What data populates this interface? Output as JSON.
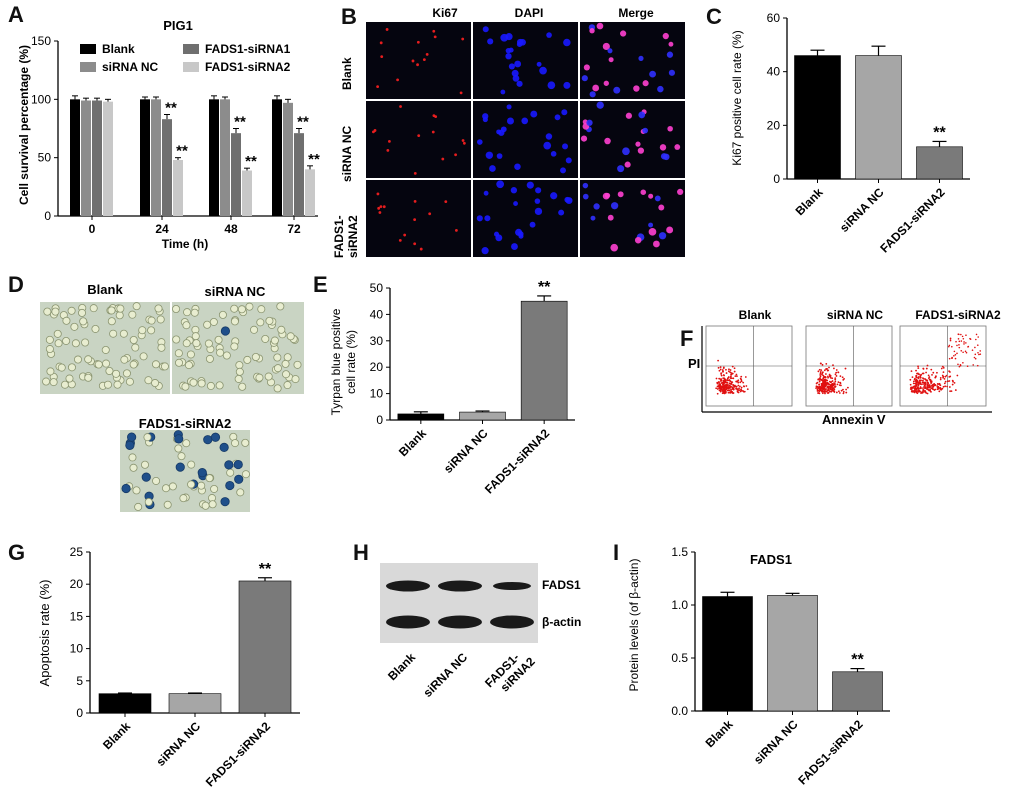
{
  "panel_labels": {
    "A": "A",
    "B": "B",
    "C": "C",
    "D": "D",
    "E": "E",
    "F": "F",
    "G": "G",
    "H": "H",
    "I": "I"
  },
  "colors": {
    "blank": "#000000",
    "sirna_nc": "#8c8c8c",
    "fads1_sirna1": "#6f6f6f",
    "fads1_sirna2": "#c8c8c8",
    "bar_single_blank": "#000000",
    "bar_single_nc": "#a6a6a6",
    "bar_single_si2": "#7a7a7a"
  },
  "panelA": {
    "title": "PIG1",
    "ylabel": "Cell survival percentage (%)",
    "xlabel": "Time (h)",
    "legend": [
      "Blank",
      "siRNA NC",
      "FADS1-siRNA1",
      "FADS1-siRNA2"
    ],
    "sig": "**"
  },
  "panelB": {
    "cols": [
      "Ki67",
      "DAPI",
      "Merge"
    ],
    "rows": [
      "Blank",
      "siRNA NC",
      "FADS1-\nsiRNA2"
    ]
  },
  "panelC": {
    "ylabel": "Ki67 positive cell rate (%)",
    "sig": "**"
  },
  "panelD": {
    "labels": [
      "Blank",
      "siRNA NC",
      "FADS1-siRNA2"
    ]
  },
  "panelE": {
    "ylabel1": "Tyrpan blue positive",
    "ylabel2": "cell rate (%)",
    "sig": "**"
  },
  "panelF": {
    "labels": [
      "Blank",
      "siRNA NC",
      "FADS1-siRNA2"
    ],
    "yaxis": "PI",
    "xaxis": "Annexin V"
  },
  "panelG": {
    "ylabel": "Apoptosis rate (%)",
    "sig": "**"
  },
  "panelH": {
    "bands": [
      "FADS1",
      "β-actin"
    ],
    "lanes": [
      "Blank",
      "siRNA NC",
      "FADS1-siRNA2"
    ]
  },
  "panelI": {
    "title": "FADS1",
    "ylabel": "Protein levels (of β-actin)",
    "sig": "**"
  },
  "chart_data": [
    {
      "id": "A",
      "type": "bar",
      "title": "PIG1",
      "categories": [
        "0",
        "24",
        "48",
        "72"
      ],
      "xlabel": "Time (h)",
      "ylabel": "Cell survival percentage (%)",
      "ylim": [
        0,
        150
      ],
      "yticks": [
        0,
        50,
        100,
        150
      ],
      "series": [
        {
          "name": "Blank",
          "values": [
            100,
            100,
            100,
            100
          ],
          "errors": [
            3,
            2,
            3,
            3
          ]
        },
        {
          "name": "siRNA NC",
          "values": [
            99,
            100,
            100,
            97
          ],
          "errors": [
            2,
            2,
            2,
            3
          ]
        },
        {
          "name": "FADS1-siRNA1",
          "values": [
            99,
            83,
            71,
            71
          ],
          "errors": [
            2,
            4,
            4,
            4
          ]
        },
        {
          "name": "FADS1-siRNA2",
          "values": [
            98,
            48,
            39,
            40
          ],
          "errors": [
            2,
            2,
            2,
            3
          ]
        }
      ]
    },
    {
      "id": "C",
      "type": "bar",
      "categories": [
        "Blank",
        "siRNA NC",
        "FADS1-siRNA2"
      ],
      "ylabel": "Ki67 positive cell rate (%)",
      "ylim": [
        0,
        60
      ],
      "yticks": [
        0,
        20,
        40,
        60
      ],
      "values": [
        46,
        46,
        12
      ],
      "errors": [
        2,
        3.5,
        2
      ]
    },
    {
      "id": "E",
      "type": "bar",
      "categories": [
        "Blank",
        "siRNA NC",
        "FADS1-siRNA2"
      ],
      "ylabel": "Tyrpan blue positive cell rate (%)",
      "ylim": [
        0,
        50
      ],
      "yticks": [
        0,
        10,
        20,
        30,
        40,
        50
      ],
      "values": [
        2.3,
        3.0,
        45
      ],
      "errors": [
        0.8,
        0.4,
        2
      ]
    },
    {
      "id": "G",
      "type": "bar",
      "categories": [
        "Blank",
        "siRNA NC",
        "FADS1-siRNA2"
      ],
      "ylabel": "Apoptosis rate (%)",
      "ylim": [
        0,
        25
      ],
      "yticks": [
        0,
        5,
        10,
        15,
        20,
        25
      ],
      "values": [
        3.0,
        3.0,
        20.5
      ],
      "errors": [
        0.1,
        0.1,
        0.5
      ]
    },
    {
      "id": "I",
      "type": "bar",
      "title": "FADS1",
      "categories": [
        "Blank",
        "siRNA NC",
        "FADS1-siRNA2"
      ],
      "ylabel": "Protein levels (of β-actin)",
      "ylim": [
        0,
        1.5
      ],
      "yticks": [
        0.0,
        0.5,
        1.0,
        1.5
      ],
      "values": [
        1.08,
        1.09,
        0.37
      ],
      "errors": [
        0.04,
        0.02,
        0.03
      ]
    }
  ]
}
